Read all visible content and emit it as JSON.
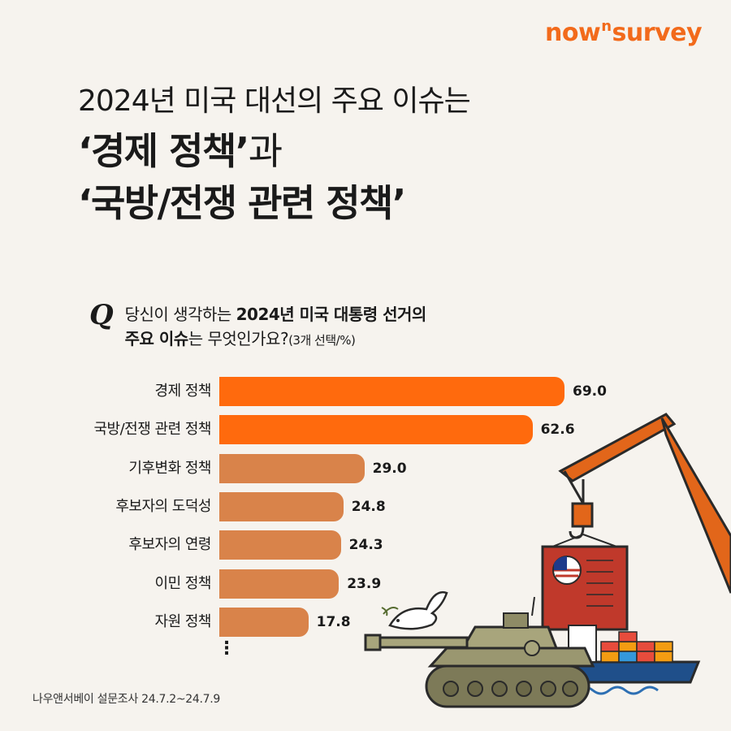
{
  "logo": {
    "pre": "now",
    "sup": "n",
    "post": "survey"
  },
  "headline": {
    "line1": "2024년 미국 대선의 주요 이슈는",
    "line2_bold": "‘경제 정책’",
    "line2_light": "과",
    "line3": "‘국방/전쟁 관련 정책’"
  },
  "question": {
    "mark": "Q",
    "line1_pre": "당신이 생각하는 ",
    "line1_bold": "2024년 미국 대통령 선거의",
    "line2_bold": "주요 이슈",
    "line2_post": "는 무엇인가요?",
    "line2_small": "(3개 선택/%)"
  },
  "colors": {
    "primary": "#ff6a0d",
    "secondary": "#d9834a"
  },
  "chart_data": {
    "type": "bar",
    "orientation": "horizontal",
    "categories": [
      "경제 정책",
      "국방/전쟁 관련 정책",
      "기후변화 정책",
      "후보자의 도덕성",
      "후보자의 연령",
      "이민 정책",
      "자원 정책"
    ],
    "values": [
      69.0,
      62.6,
      29.0,
      24.8,
      24.3,
      23.9,
      17.8
    ],
    "value_labels": [
      "69.0",
      "62.6",
      "29.0",
      "24.8",
      "24.3",
      "23.9",
      "17.8"
    ],
    "highlight_count": 2,
    "more_indicator": "⋮"
  },
  "source": "나우앤서베이 설문조사 24.7.2~24.7.9"
}
